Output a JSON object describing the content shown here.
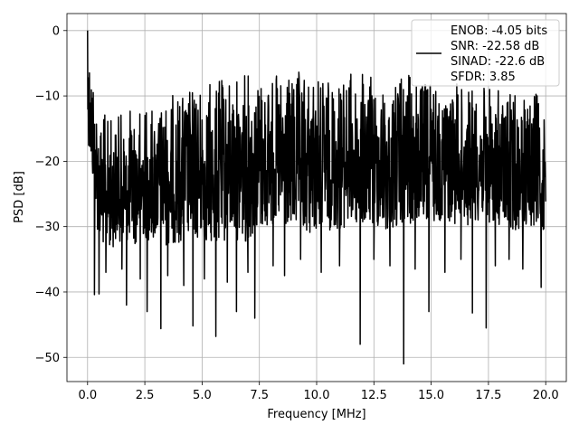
{
  "chart_data": {
    "type": "line",
    "xlabel": "Frequency [MHz]",
    "ylabel": "PSD [dB]",
    "xlim": [
      -0.9,
      20.9
    ],
    "ylim": [
      -53.7,
      2.6
    ],
    "x_ticks": [
      0.0,
      2.5,
      5.0,
      7.5,
      10.0,
      12.5,
      15.0,
      17.5,
      20.0
    ],
    "x_tick_labels": [
      "0.0",
      "2.5",
      "5.0",
      "7.5",
      "10.0",
      "12.5",
      "15.0",
      "17.5",
      "20.0"
    ],
    "y_ticks": [
      0,
      -10,
      -20,
      -30,
      -40,
      -50
    ],
    "y_tick_labels": [
      "0",
      "−10",
      "−20",
      "−30",
      "−40",
      "−50"
    ],
    "grid": true,
    "legend_position": "top-right",
    "series": [
      {
        "color": "#000000",
        "legend_lines": [
          "ENOB: -4.05 bits",
          "SNR: -22.58 dB",
          "SINAD: -22.6 dB",
          "SFDR: 3.85"
        ],
        "envelope": {
          "x": [
            0.0,
            0.5,
            1.0,
            1.5,
            2.0,
            2.5,
            3.0,
            3.5,
            4.0,
            4.5,
            5.0,
            5.5,
            6.0,
            6.5,
            7.0,
            7.5,
            8.0,
            8.5,
            9.0,
            9.5,
            10.0,
            10.5,
            11.0,
            11.5,
            12.0,
            12.5,
            13.0,
            13.5,
            14.0,
            14.5,
            15.0,
            15.5,
            16.0,
            16.5,
            17.0,
            17.5,
            18.0,
            18.5,
            19.0,
            19.5,
            20.0
          ],
          "upper": [
            0.0,
            -12.0,
            -13.0,
            -12.5,
            -11.5,
            -11.0,
            -11.0,
            -10.0,
            -9.0,
            -8.5,
            -8.0,
            -7.5,
            -7.0,
            -6.5,
            -6.0,
            -6.0,
            -6.5,
            -7.0,
            -6.5,
            -6.0,
            -6.5,
            -7.0,
            -6.5,
            -6.0,
            -6.5,
            -7.0,
            -7.5,
            -7.0,
            -6.5,
            -7.0,
            -7.5,
            -8.0,
            -8.0,
            -8.0,
            -8.5,
            -8.5,
            -9.0,
            -9.0,
            -9.5,
            -9.5,
            -10.0
          ],
          "lower": [
            -16.0,
            -33.0,
            -33.5,
            -32.0,
            -33.0,
            -32.0,
            -32.5,
            -33.0,
            -32.5,
            -32.0,
            -32.5,
            -33.0,
            -32.5,
            -32.0,
            -32.5,
            -31.0,
            -30.0,
            -30.5,
            -31.0,
            -31.5,
            -31.0,
            -30.5,
            -31.0,
            -30.0,
            -30.5,
            -30.0,
            -31.0,
            -30.5,
            -30.0,
            -30.0,
            -29.5,
            -29.0,
            -29.5,
            -30.0,
            -29.0,
            -29.5,
            -30.0,
            -31.0,
            -30.0,
            -30.5,
            -31.0
          ]
        },
        "deep_dips": [
          {
            "x": 0.3,
            "y": -40.4
          },
          {
            "x": 0.5,
            "y": -40.3
          },
          {
            "x": 0.8,
            "y": -37.0
          },
          {
            "x": 1.5,
            "y": -36.5
          },
          {
            "x": 1.7,
            "y": -42.0
          },
          {
            "x": 2.3,
            "y": -38.0
          },
          {
            "x": 2.6,
            "y": -43.0
          },
          {
            "x": 3.2,
            "y": -45.6
          },
          {
            "x": 3.5,
            "y": -37.5
          },
          {
            "x": 4.2,
            "y": -39.0
          },
          {
            "x": 4.6,
            "y": -45.2
          },
          {
            "x": 5.1,
            "y": -38.0
          },
          {
            "x": 5.6,
            "y": -46.8
          },
          {
            "x": 6.1,
            "y": -38.5
          },
          {
            "x": 6.5,
            "y": -43.0
          },
          {
            "x": 7.0,
            "y": -37.0
          },
          {
            "x": 7.3,
            "y": -44.0
          },
          {
            "x": 8.1,
            "y": -36.0
          },
          {
            "x": 8.6,
            "y": -37.5
          },
          {
            "x": 9.3,
            "y": -35.0
          },
          {
            "x": 10.2,
            "y": -37.0
          },
          {
            "x": 11.0,
            "y": -36.0
          },
          {
            "x": 11.9,
            "y": -48.0
          },
          {
            "x": 12.5,
            "y": -35.0
          },
          {
            "x": 13.2,
            "y": -36.0
          },
          {
            "x": 13.8,
            "y": -51.0
          },
          {
            "x": 14.3,
            "y": -36.5
          },
          {
            "x": 14.9,
            "y": -43.0
          },
          {
            "x": 15.6,
            "y": -37.0
          },
          {
            "x": 16.3,
            "y": -35.0
          },
          {
            "x": 16.8,
            "y": -43.2
          },
          {
            "x": 17.4,
            "y": -45.5
          },
          {
            "x": 17.8,
            "y": -36.0
          },
          {
            "x": 18.4,
            "y": -35.0
          },
          {
            "x": 19.0,
            "y": -36.5
          },
          {
            "x": 19.8,
            "y": -39.3
          }
        ]
      }
    ]
  }
}
